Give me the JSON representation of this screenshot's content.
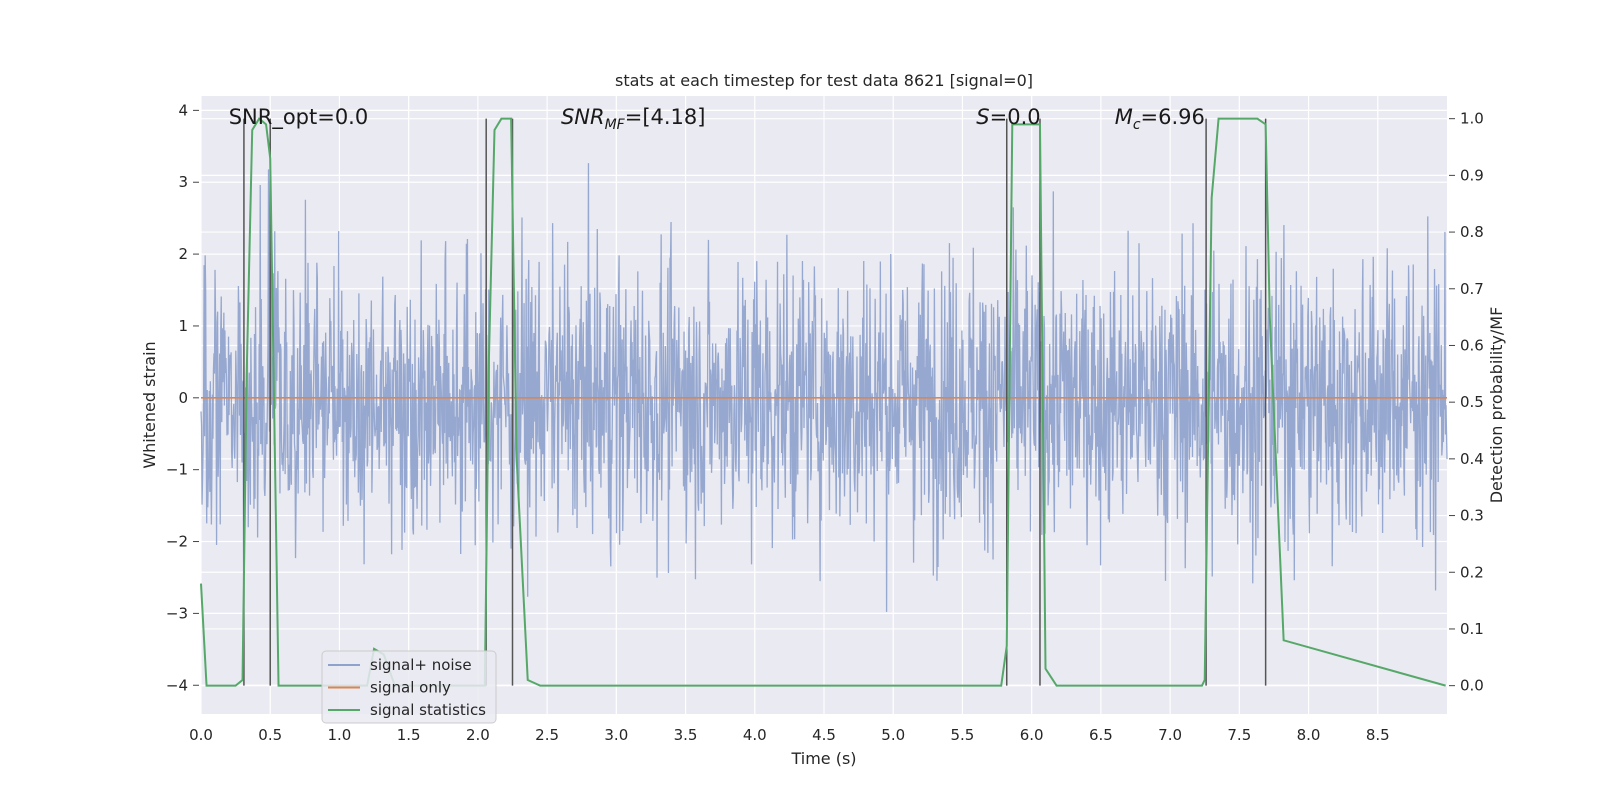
{
  "chart_data": {
    "type": "line",
    "title": "stats at each timestep for test data 8621 [signal=0]",
    "xlabel": "Time (s)",
    "ylabel": "Whitened strain",
    "ylabel_right": "Detection probability/MF",
    "xlim": [
      0.0,
      9.0
    ],
    "ylim": [
      -4.4,
      4.2
    ],
    "ylim_right": [
      -0.05,
      1.04
    ],
    "x_ticks": [
      "0.0",
      "0.5",
      "1.0",
      "1.5",
      "2.0",
      "2.5",
      "3.0",
      "3.5",
      "4.0",
      "4.5",
      "5.0",
      "5.5",
      "6.0",
      "6.5",
      "7.0",
      "7.5",
      "8.0",
      "8.5"
    ],
    "y_ticks": [
      "−4",
      "−3",
      "−2",
      "−1",
      "0",
      "1",
      "2",
      "3",
      "4"
    ],
    "y_ticks_right": [
      "0.0",
      "0.1",
      "0.2",
      "0.3",
      "0.4",
      "0.5",
      "0.6",
      "0.7",
      "0.8",
      "0.9",
      "1.0"
    ],
    "grid": true,
    "legend_position": "lower-left",
    "colors": {
      "signal_noise": "#8ea2cc",
      "signal_only": "#dd8452",
      "signal_statistics": "#55a868",
      "background": "#eaeaf2",
      "marker_lines": "#555555"
    },
    "annotations": {
      "snr_opt": "SNR_opt=0.0",
      "snr_mf_main": "SNR",
      "snr_mf_sub": "MF",
      "snr_mf_value": "=[4.18]",
      "s_main": "S",
      "s_value": "=0.0",
      "mc_main": "M",
      "mc_sub": "c",
      "mc_value": "=6.96"
    },
    "series": [
      {
        "name": "signal+ noise",
        "axis": "left",
        "style": "noise",
        "x_range": [
          0.0,
          9.0
        ],
        "amplitude_range": [
          -3.9,
          3.7
        ]
      },
      {
        "name": "signal only",
        "axis": "left",
        "x": [
          0.0,
          9.0
        ],
        "y": [
          0.0,
          0.0
        ]
      },
      {
        "name": "signal statistics",
        "axis": "right",
        "x": [
          0.0,
          0.04,
          0.1,
          0.2,
          0.25,
          0.3,
          0.33,
          0.37,
          0.42,
          0.47,
          0.5,
          0.56,
          1.2,
          1.25,
          1.32,
          1.4,
          1.5,
          2.05,
          2.08,
          2.12,
          2.17,
          2.24,
          2.28,
          2.36,
          2.45,
          2.5,
          5.65,
          5.78,
          5.82,
          5.86,
          6.06,
          6.1,
          6.18,
          7.23,
          7.25,
          7.3,
          7.35,
          7.63,
          7.69,
          7.72,
          7.82,
          8.99
        ],
        "y": [
          0.18,
          0.0,
          0.0,
          0.0,
          0.0,
          0.01,
          0.55,
          0.98,
          1.0,
          0.99,
          0.93,
          0.0,
          0.0,
          0.065,
          0.055,
          0.0,
          0.0,
          0.0,
          0.58,
          0.98,
          1.0,
          1.0,
          0.4,
          0.01,
          0.0,
          0.0,
          0.0,
          0.0,
          0.07,
          0.99,
          0.99,
          0.03,
          0.0,
          0.0,
          0.01,
          0.86,
          1.0,
          1.0,
          0.99,
          0.65,
          0.08,
          0.0
        ]
      }
    ],
    "detection_markers": [
      {
        "start": 0.31,
        "end": 0.5
      },
      {
        "start": 2.06,
        "end": 2.25
      },
      {
        "start": 5.82,
        "end": 6.06
      },
      {
        "start": 7.26,
        "end": 7.69
      }
    ],
    "legend": {
      "items": [
        "signal+ noise",
        "signal only",
        "signal statistics"
      ]
    }
  }
}
